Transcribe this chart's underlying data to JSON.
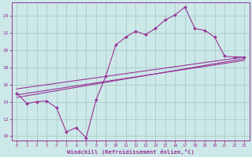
{
  "xlabel": "Windchill (Refroidissement éolien,°C)",
  "background_color": "#cce8e8",
  "line_color": "#993399",
  "xlim_min": -0.5,
  "xlim_max": 23.5,
  "ylim_min": 9.5,
  "ylim_max": 25.5,
  "xticks": [
    0,
    1,
    2,
    3,
    4,
    5,
    6,
    7,
    8,
    9,
    10,
    11,
    12,
    13,
    14,
    15,
    16,
    17,
    18,
    19,
    20,
    21,
    22,
    23
  ],
  "yticks": [
    10,
    12,
    14,
    16,
    18,
    20,
    22,
    24
  ],
  "grid_color": "#aacccc",
  "line1_x": [
    0,
    1,
    2,
    3,
    4,
    5,
    6,
    7,
    8,
    9,
    10,
    11,
    12,
    13,
    14,
    15,
    16,
    17,
    18,
    19,
    20,
    21,
    22,
    23
  ],
  "line1_y": [
    15.0,
    13.8,
    14.0,
    14.1,
    13.3,
    10.5,
    11.0,
    9.8,
    14.2,
    17.0,
    20.6,
    21.5,
    22.2,
    21.8,
    22.5,
    23.5,
    24.1,
    25.0,
    22.5,
    22.3,
    21.5,
    19.3,
    19.2,
    19.2
  ],
  "line2_x": [
    0,
    23
  ],
  "line2_y": [
    15.5,
    19.2
  ],
  "line3_x": [
    0,
    23
  ],
  "line3_y": [
    14.8,
    18.8
  ],
  "line4_x": [
    0,
    23
  ],
  "line4_y": [
    14.5,
    19.0
  ]
}
